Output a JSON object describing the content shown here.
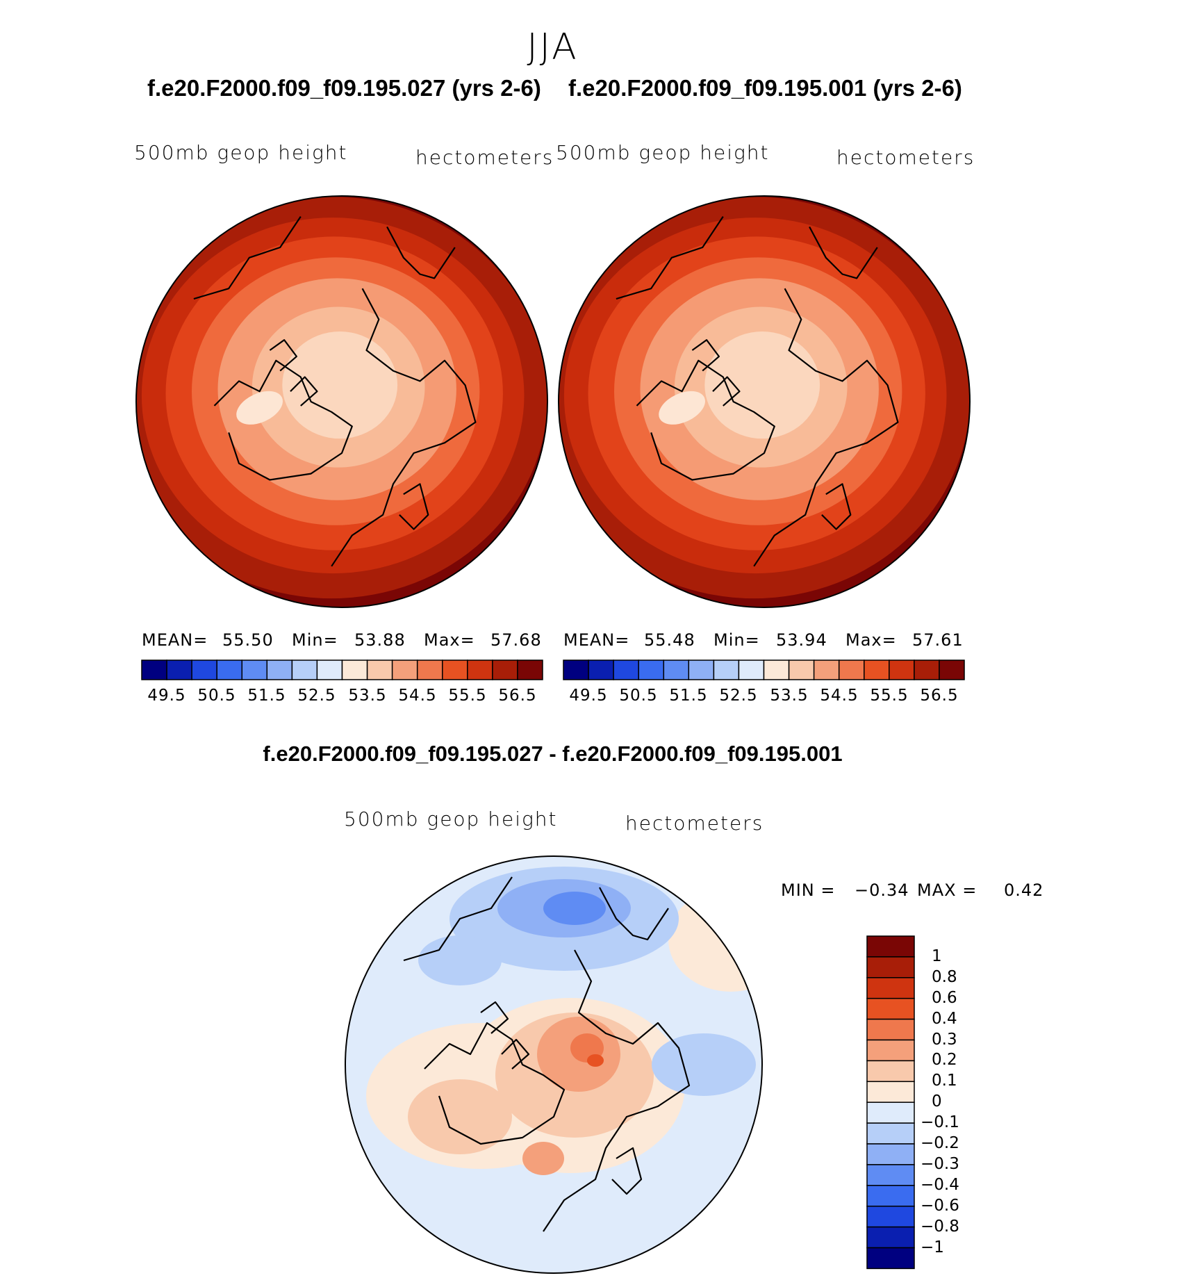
{
  "figure": {
    "season": "JJA",
    "variable": "500mb geop height",
    "units": "hectometers"
  },
  "panels": [
    {
      "title": "f.e20.F2000.f09_f09.195.027 (yrs 2-6)",
      "variable": "500mb geop height",
      "units": "hectometers",
      "stats": {
        "mean_label": "MEAN=",
        "mean": "55.50",
        "min_label": "Min=",
        "min": "53.88",
        "max_label": "Max=",
        "max": "57.68"
      }
    },
    {
      "title": "f.e20.F2000.f09_f09.195.001 (yrs 2-6)",
      "variable": "500mb geop height",
      "units": "hectometers",
      "stats": {
        "mean_label": "MEAN=",
        "mean": "55.48",
        "min_label": "Min=",
        "min": "53.94",
        "max_label": "Max=",
        "max": "57.61"
      }
    }
  ],
  "difference": {
    "title": "f.e20.F2000.f09_f09.195.027 - f.e20.F2000.f09_f09.195.001",
    "variable": "500mb geop height",
    "units": "hectometers",
    "min_label": "MIN =",
    "min": "−0.34",
    "max_label": "MAX =",
    "max": "0.42"
  },
  "chart_data": [
    {
      "type": "heatmap",
      "projection": "north polar stereographic",
      "title": "f.e20.F2000.f09_f09.195.027 (yrs 2-6)",
      "field": "500mb geop height (hectometers)",
      "mean": 55.5,
      "min": 53.88,
      "max": 57.68,
      "colorbar_ticks": [
        "49.5",
        "50.5",
        "51.5",
        "52.5",
        "53.5",
        "54.5",
        "55.5",
        "56.5"
      ]
    },
    {
      "type": "heatmap",
      "projection": "north polar stereographic",
      "title": "f.e20.F2000.f09_f09.195.001 (yrs 2-6)",
      "field": "500mb geop height (hectometers)",
      "mean": 55.48,
      "min": 53.94,
      "max": 57.61,
      "colorbar_ticks": [
        "49.5",
        "50.5",
        "51.5",
        "52.5",
        "53.5",
        "54.5",
        "55.5",
        "56.5"
      ]
    },
    {
      "type": "heatmap",
      "projection": "north polar stereographic",
      "title": "f.e20.F2000.f09_f09.195.027 - f.e20.F2000.f09_f09.195.001",
      "field": "500mb geop height difference (hectometers)",
      "min": -0.34,
      "max": 0.42,
      "colorbar_ticks": [
        "1",
        "0.8",
        "0.6",
        "0.4",
        "0.3",
        "0.2",
        "0.1",
        "0",
        "−0.1",
        "−0.2",
        "−0.3",
        "−0.4",
        "−0.6",
        "−0.8",
        "−1"
      ]
    }
  ],
  "colors": {
    "seq_cbar": [
      "#000080",
      "#0a1fb0",
      "#1f48e0",
      "#3a6cf0",
      "#5f8cf3",
      "#8fb0f5",
      "#b6cff8",
      "#dfebfb",
      "#fce9d8",
      "#f8c9ac",
      "#f4a07b",
      "#ef784d",
      "#e75222",
      "#cf3410",
      "#a81e08",
      "#7a0605"
    ],
    "diff_cbar": [
      "#7a0605",
      "#a81e08",
      "#cf3410",
      "#e75222",
      "#ef784d",
      "#f4a07b",
      "#f8c9ac",
      "#fce9d8",
      "#dfebfb",
      "#b6cff8",
      "#8fb0f5",
      "#5f8cf3",
      "#3a6cf0",
      "#1f48e0",
      "#0a1fb0",
      "#000080"
    ],
    "height_rings": [
      "#7a0605",
      "#a81e08",
      "#c92c0c",
      "#e2431a",
      "#ef6a3d",
      "#f59b74",
      "#f8bb98",
      "#fbd7be"
    ]
  }
}
